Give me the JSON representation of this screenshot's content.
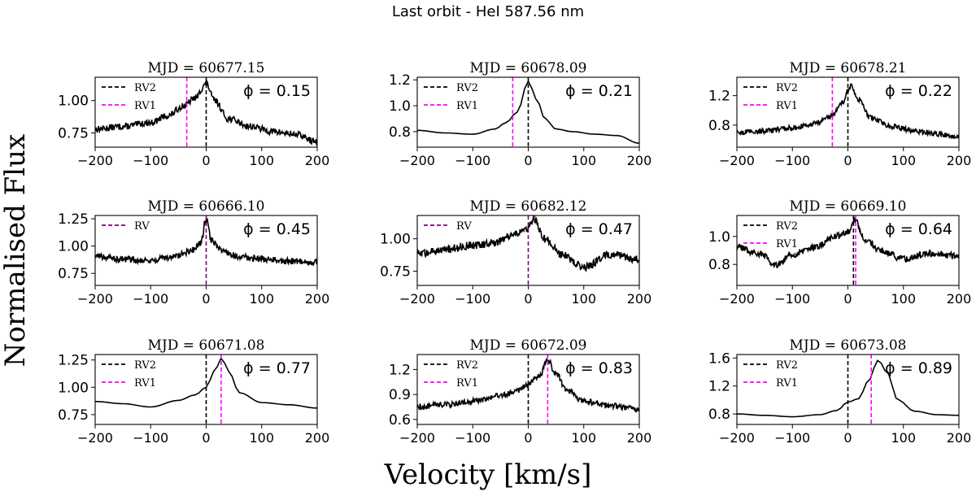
{
  "figure": {
    "title": "Last orbit - HeI 587.56 nm",
    "xlabel": "Velocity [km/s]",
    "ylabel": "Normalised Flux"
  },
  "colors": {
    "rv1": "#ff00ff",
    "rv2": "#000000",
    "rv": "#800080",
    "line": "#000000"
  },
  "chart_data": [
    {
      "type": "line",
      "title": "MJD = 60677.15",
      "phase": "ϕ = 0.15",
      "xlim": [
        -200,
        200
      ],
      "ylim": [
        0.64,
        1.18
      ],
      "yticks": [
        0.75,
        1.0
      ],
      "yticklabels": [
        "0.75",
        "1.00"
      ],
      "xticks": [
        -200,
        -100,
        0,
        100,
        200
      ],
      "xticklabels": [
        "−200",
        "−100",
        "0",
        "100",
        "200"
      ],
      "legend": [
        {
          "label": "RV2",
          "color": "#000000"
        },
        {
          "label": "RV1",
          "color": "#ff00ff"
        }
      ],
      "rv_lines": [
        {
          "value": 0,
          "color": "#000000"
        },
        {
          "value": -35,
          "color": "#ff00ff"
        }
      ],
      "profile": {
        "x": [
          -200,
          -150,
          -100,
          -70,
          -40,
          -20,
          0,
          15,
          40,
          80,
          120,
          160,
          200
        ],
        "y": [
          0.78,
          0.8,
          0.83,
          0.88,
          0.96,
          1.02,
          1.13,
          1.0,
          0.86,
          0.8,
          0.76,
          0.74,
          0.68
        ]
      },
      "noise": 0.025,
      "points": 400
    },
    {
      "type": "line",
      "title": "MJD = 60678.09",
      "phase": "ϕ = 0.21",
      "xlim": [
        -200,
        200
      ],
      "ylim": [
        0.68,
        1.22
      ],
      "yticks": [
        0.8,
        1.0,
        1.2
      ],
      "yticklabels": [
        "0.8",
        "1.0",
        "1.2"
      ],
      "xticks": [
        -200,
        -100,
        0,
        100,
        200
      ],
      "xticklabels": [
        "−200",
        "−100",
        "0",
        "100",
        "200"
      ],
      "legend": [
        {
          "label": "RV2",
          "color": "#000000"
        },
        {
          "label": "RV1",
          "color": "#ff00ff"
        }
      ],
      "rv_lines": [
        {
          "value": 0,
          "color": "#000000"
        },
        {
          "value": -28,
          "color": "#ff00ff"
        }
      ],
      "profile": {
        "x": [
          -200,
          -150,
          -100,
          -60,
          -40,
          -20,
          0,
          15,
          30,
          50,
          80,
          120,
          160,
          200
        ],
        "y": [
          0.81,
          0.79,
          0.78,
          0.82,
          0.87,
          0.95,
          1.19,
          1.05,
          0.9,
          0.82,
          0.8,
          0.78,
          0.77,
          0.71
        ]
      },
      "noise": 0.0,
      "points": 60
    },
    {
      "type": "line",
      "title": "MJD = 60678.21",
      "phase": "ϕ = 0.22",
      "xlim": [
        -200,
        200
      ],
      "ylim": [
        0.5,
        1.45
      ],
      "yticks": [
        0.8,
        1.2
      ],
      "yticklabels": [
        "0.8",
        "1.2"
      ],
      "xticks": [
        -200,
        -100,
        0,
        100,
        200
      ],
      "xticklabels": [
        "−200",
        "−100",
        "0",
        "100",
        "200"
      ],
      "legend": [
        {
          "label": "RV2",
          "color": "#000000"
        },
        {
          "label": "RV1",
          "color": "#ff00ff"
        }
      ],
      "rv_lines": [
        {
          "value": 0,
          "color": "#000000"
        },
        {
          "value": -28,
          "color": "#ff00ff"
        }
      ],
      "profile": {
        "x": [
          -200,
          -150,
          -100,
          -60,
          -30,
          -10,
          5,
          20,
          40,
          80,
          120,
          160,
          200
        ],
        "y": [
          0.7,
          0.72,
          0.76,
          0.82,
          0.92,
          1.1,
          1.33,
          1.15,
          0.9,
          0.78,
          0.72,
          0.68,
          0.64
        ]
      },
      "noise": 0.035,
      "points": 400
    },
    {
      "type": "line",
      "title": "MJD = 60666.10",
      "phase": "ϕ = 0.45",
      "xlim": [
        -200,
        200
      ],
      "ylim": [
        0.64,
        1.28
      ],
      "yticks": [
        0.75,
        1.0,
        1.25
      ],
      "yticklabels": [
        "0.75",
        "1.00",
        "1.25"
      ],
      "xticks": [
        -200,
        -100,
        0,
        100,
        200
      ],
      "xticklabels": [
        "−200",
        "−100",
        "0",
        "100",
        "200"
      ],
      "legend": [
        {
          "label": "RV",
          "color": "#800080"
        }
      ],
      "rv_lines": [
        {
          "value": 0,
          "color": "#800080"
        }
      ],
      "profile": {
        "x": [
          -200,
          -150,
          -100,
          -60,
          -30,
          -10,
          0,
          10,
          30,
          60,
          100,
          150,
          200
        ],
        "y": [
          0.91,
          0.88,
          0.87,
          0.9,
          0.95,
          1.02,
          1.25,
          1.05,
          0.95,
          0.9,
          0.88,
          0.86,
          0.85
        ]
      },
      "noise": 0.03,
      "points": 400
    },
    {
      "type": "line",
      "title": "MJD = 60682.12",
      "phase": "ϕ = 0.47",
      "xlim": [
        -200,
        200
      ],
      "ylim": [
        0.64,
        1.18
      ],
      "yticks": [
        0.75,
        1.0
      ],
      "yticklabels": [
        "0.75",
        "1.00"
      ],
      "xticks": [
        -200,
        -100,
        0,
        100,
        200
      ],
      "xticklabels": [
        "−200",
        "−100",
        "0",
        "100",
        "200"
      ],
      "legend": [
        {
          "label": "RV",
          "color": "#800080"
        }
      ],
      "rv_lines": [
        {
          "value": 0,
          "color": "#800080"
        }
      ],
      "profile": {
        "x": [
          -200,
          -150,
          -100,
          -60,
          -30,
          0,
          10,
          30,
          60,
          100,
          150,
          200
        ],
        "y": [
          0.88,
          0.92,
          0.95,
          0.97,
          1.02,
          1.08,
          1.15,
          1.0,
          0.88,
          0.78,
          0.88,
          0.84
        ]
      },
      "noise": 0.03,
      "points": 400
    },
    {
      "type": "line",
      "title": "MJD = 60669.10",
      "phase": "ϕ = 0.64",
      "xlim": [
        -200,
        200
      ],
      "ylim": [
        0.65,
        1.15
      ],
      "yticks": [
        0.8,
        1.0
      ],
      "yticklabels": [
        "0.8",
        "1.0"
      ],
      "xticks": [
        -200,
        -100,
        0,
        100,
        200
      ],
      "xticklabels": [
        "−200",
        "−100",
        "0",
        "100",
        "200"
      ],
      "legend": [
        {
          "label": "RV2",
          "color": "#000000"
        },
        {
          "label": "RV1",
          "color": "#ff00ff"
        }
      ],
      "rv_lines": [
        {
          "value": 10,
          "color": "#000000"
        },
        {
          "value": 14,
          "color": "#ff00ff"
        }
      ],
      "profile": {
        "x": [
          -200,
          -160,
          -130,
          -100,
          -60,
          -20,
          0,
          12,
          30,
          60,
          100,
          150,
          200
        ],
        "y": [
          0.92,
          0.88,
          0.8,
          0.87,
          0.92,
          1.0,
          1.03,
          1.12,
          0.98,
          0.9,
          0.84,
          0.88,
          0.86
        ]
      },
      "noise": 0.025,
      "points": 400
    },
    {
      "type": "line",
      "title": "MJD = 60671.08",
      "phase": "ϕ = 0.77",
      "xlim": [
        -200,
        200
      ],
      "ylim": [
        0.66,
        1.3
      ],
      "yticks": [
        0.75,
        1.0,
        1.25
      ],
      "yticklabels": [
        "0.75",
        "1.00",
        "1.25"
      ],
      "xticks": [
        -200,
        -100,
        0,
        100,
        200
      ],
      "xticklabels": [
        "−200",
        "−100",
        "0",
        "100",
        "200"
      ],
      "legend": [
        {
          "label": "RV2",
          "color": "#000000"
        },
        {
          "label": "RV1",
          "color": "#ff00ff"
        }
      ],
      "rv_lines": [
        {
          "value": 0,
          "color": "#000000"
        },
        {
          "value": 27,
          "color": "#ff00ff"
        }
      ],
      "profile": {
        "x": [
          -200,
          -150,
          -100,
          -50,
          -20,
          0,
          15,
          28,
          40,
          60,
          100,
          150,
          200
        ],
        "y": [
          0.87,
          0.85,
          0.82,
          0.88,
          0.93,
          1.0,
          1.15,
          1.27,
          1.15,
          0.95,
          0.86,
          0.84,
          0.81
        ]
      },
      "noise": 0.0,
      "points": 60
    },
    {
      "type": "line",
      "title": "MJD = 60672.09",
      "phase": "ϕ = 0.83",
      "xlim": [
        -200,
        200
      ],
      "ylim": [
        0.54,
        1.38
      ],
      "yticks": [
        0.6,
        0.9,
        1.2
      ],
      "yticklabels": [
        "0.6",
        "0.9",
        "1.2"
      ],
      "xticks": [
        -200,
        -100,
        0,
        100,
        200
      ],
      "xticklabels": [
        "−200",
        "−100",
        "0",
        "100",
        "200"
      ],
      "legend": [
        {
          "label": "RV2",
          "color": "#000000"
        },
        {
          "label": "RV1",
          "color": "#ff00ff"
        }
      ],
      "rv_lines": [
        {
          "value": 0,
          "color": "#000000"
        },
        {
          "value": 35,
          "color": "#ff00ff"
        }
      ],
      "profile": {
        "x": [
          -200,
          -150,
          -100,
          -50,
          -20,
          0,
          20,
          35,
          50,
          70,
          100,
          150,
          200
        ],
        "y": [
          0.75,
          0.78,
          0.82,
          0.88,
          0.95,
          1.02,
          1.12,
          1.31,
          1.15,
          0.95,
          0.82,
          0.76,
          0.72
        ]
      },
      "noise": 0.035,
      "points": 400
    },
    {
      "type": "line",
      "title": "MJD = 60673.08",
      "phase": "ϕ = 0.89",
      "xlim": [
        -200,
        200
      ],
      "ylim": [
        0.65,
        1.65
      ],
      "yticks": [
        0.8,
        1.2,
        1.6
      ],
      "yticklabels": [
        "0.8",
        "1.2",
        "1.6"
      ],
      "xticks": [
        -200,
        -100,
        0,
        100,
        200
      ],
      "xticklabels": [
        "−200",
        "−100",
        "0",
        "100",
        "200"
      ],
      "legend": [
        {
          "label": "RV2",
          "color": "#000000"
        },
        {
          "label": "RV1",
          "color": "#ff00ff"
        }
      ],
      "rv_lines": [
        {
          "value": 0,
          "color": "#000000"
        },
        {
          "value": 42,
          "color": "#ff00ff"
        }
      ],
      "profile": {
        "x": [
          -200,
          -150,
          -100,
          -50,
          -20,
          0,
          20,
          35,
          55,
          70,
          90,
          120,
          160,
          200
        ],
        "y": [
          0.8,
          0.78,
          0.76,
          0.79,
          0.85,
          0.97,
          1.02,
          1.25,
          1.57,
          1.4,
          1.0,
          0.84,
          0.79,
          0.78
        ]
      },
      "noise": 0.0,
      "points": 60
    }
  ]
}
